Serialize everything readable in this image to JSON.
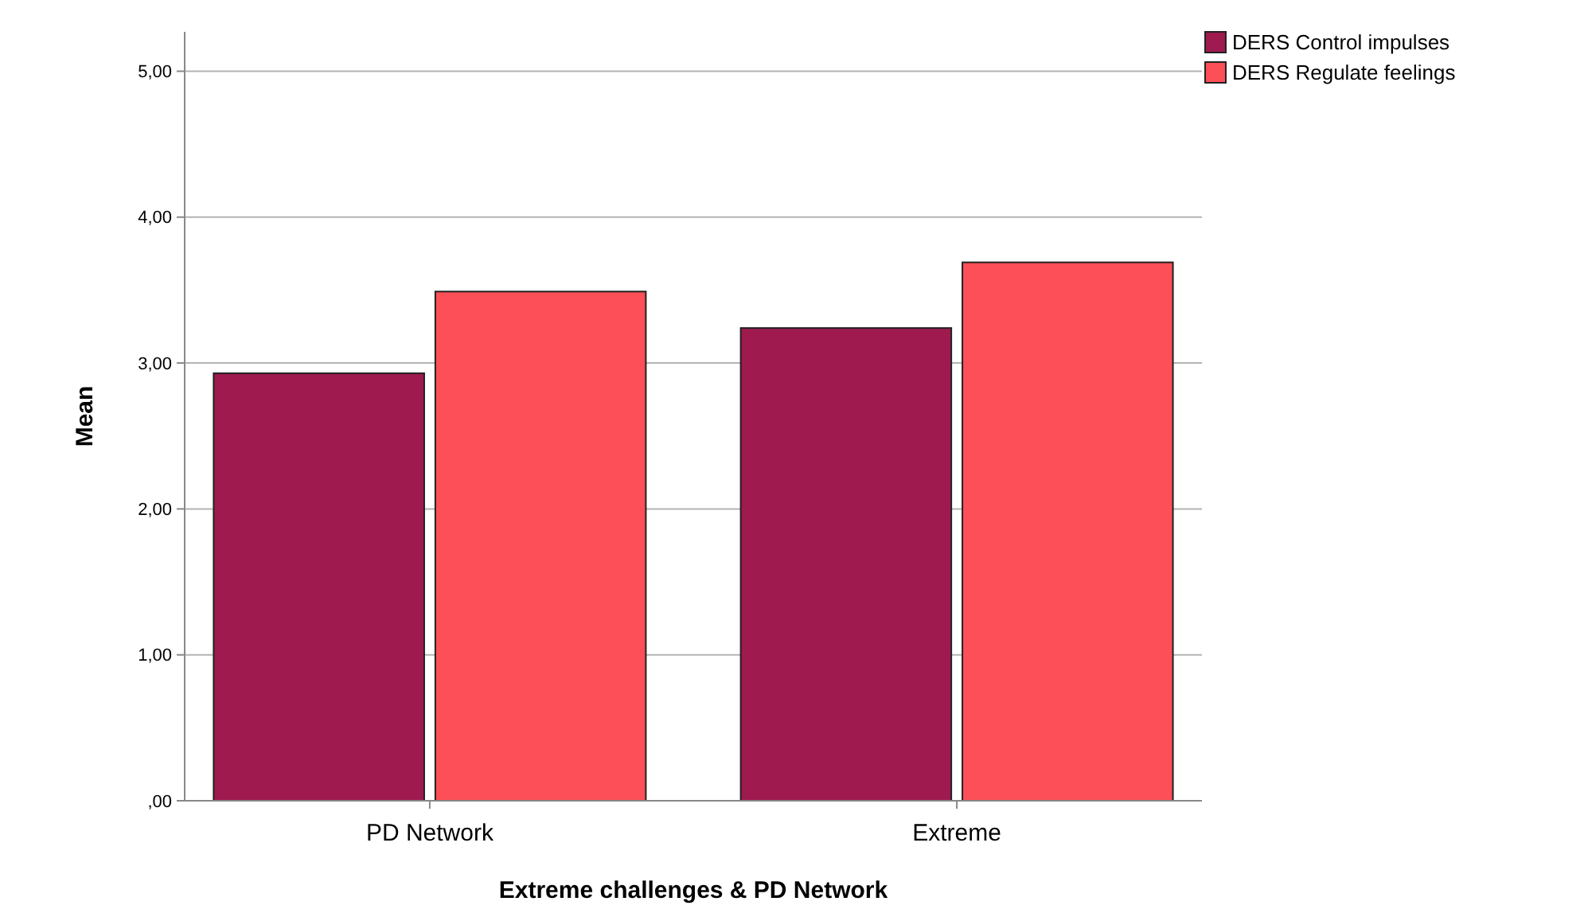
{
  "chart_data": {
    "type": "bar",
    "xlabel": "Extreme challenges & PD Network",
    "ylabel": "Mean",
    "categories": [
      "PD Network",
      "Extreme"
    ],
    "series": [
      {
        "name": "DERS Control impulses",
        "color": "#9e1a4f",
        "values": [
          2.93,
          3.24
        ]
      },
      {
        "name": "DERS Regulate feelings",
        "color": "#fc4f57",
        "values": [
          3.49,
          3.69
        ]
      }
    ],
    "ylim": [
      0,
      5.27
    ],
    "yticks": [
      {
        "value": 0,
        "label": ",00"
      },
      {
        "value": 1,
        "label": "1,00"
      },
      {
        "value": 2,
        "label": "2,00"
      },
      {
        "value": 3,
        "label": "3,00"
      },
      {
        "value": 4,
        "label": "4,00"
      },
      {
        "value": 5,
        "label": "5,00"
      }
    ],
    "grid": "y",
    "legend": "top right"
  }
}
